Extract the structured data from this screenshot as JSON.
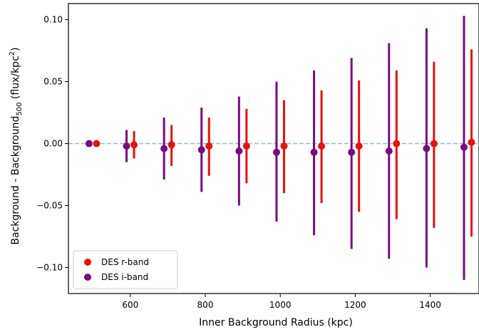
{
  "chart_data": {
    "type": "scatter",
    "title": "",
    "xlabel": "Inner Background Radius (kpc)",
    "ylabel": {
      "main": "Background - Background",
      "sub": "500",
      "unit_open": " (flux/kpc",
      "unit_sup": "2",
      "unit_close": ")"
    },
    "xlim": [
      435,
      1530
    ],
    "ylim": [
      -0.121,
      0.113
    ],
    "xticks": [
      600,
      800,
      1000,
      1200,
      1400
    ],
    "xtick_labels": [
      "600",
      "800",
      "1000",
      "1200",
      "1400"
    ],
    "yticks": [
      -0.1,
      -0.05,
      0.0,
      0.05,
      0.1
    ],
    "ytick_labels": [
      "−0.10",
      "−0.05",
      "0.00",
      "0.05",
      "0.10"
    ],
    "grid": false,
    "reference_line": {
      "y": 0,
      "style": "dashed",
      "color": "#8fb9dc"
    },
    "legend": {
      "placement": "lower-left"
    },
    "series": [
      {
        "name": "DES r-band",
        "color": "#e8120c",
        "points": [
          {
            "x": 510,
            "y": 0.0,
            "err_low": 0.0,
            "err_high": 0.0
          },
          {
            "x": 610,
            "y": -0.001,
            "err_low": -0.012,
            "err_high": 0.01
          },
          {
            "x": 710,
            "y": -0.001,
            "err_low": -0.018,
            "err_high": 0.015
          },
          {
            "x": 810,
            "y": -0.002,
            "err_low": -0.026,
            "err_high": 0.021
          },
          {
            "x": 910,
            "y": -0.002,
            "err_low": -0.032,
            "err_high": 0.028
          },
          {
            "x": 1010,
            "y": -0.002,
            "err_low": -0.04,
            "err_high": 0.035
          },
          {
            "x": 1110,
            "y": -0.002,
            "err_low": -0.048,
            "err_high": 0.043
          },
          {
            "x": 1210,
            "y": -0.002,
            "err_low": -0.055,
            "err_high": 0.051
          },
          {
            "x": 1310,
            "y": 0.0,
            "err_low": -0.061,
            "err_high": 0.059
          },
          {
            "x": 1410,
            "y": 0.0,
            "err_low": -0.068,
            "err_high": 0.066
          },
          {
            "x": 1510,
            "y": 0.001,
            "err_low": -0.075,
            "err_high": 0.076
          }
        ]
      },
      {
        "name": "DES i-band",
        "color": "#7a0a7e",
        "points": [
          {
            "x": 490,
            "y": 0.0,
            "err_low": 0.0,
            "err_high": 0.0
          },
          {
            "x": 590,
            "y": -0.002,
            "err_low": -0.015,
            "err_high": 0.011
          },
          {
            "x": 690,
            "y": -0.004,
            "err_low": -0.029,
            "err_high": 0.021
          },
          {
            "x": 790,
            "y": -0.005,
            "err_low": -0.039,
            "err_high": 0.029
          },
          {
            "x": 890,
            "y": -0.006,
            "err_low": -0.05,
            "err_high": 0.038
          },
          {
            "x": 990,
            "y": -0.007,
            "err_low": -0.063,
            "err_high": 0.05
          },
          {
            "x": 1090,
            "y": -0.007,
            "err_low": -0.074,
            "err_high": 0.059
          },
          {
            "x": 1190,
            "y": -0.007,
            "err_low": -0.085,
            "err_high": 0.069
          },
          {
            "x": 1290,
            "y": -0.006,
            "err_low": -0.093,
            "err_high": 0.081
          },
          {
            "x": 1390,
            "y": -0.004,
            "err_low": -0.1,
            "err_high": 0.093
          },
          {
            "x": 1490,
            "y": -0.003,
            "err_low": -0.11,
            "err_high": 0.103
          }
        ]
      }
    ]
  }
}
